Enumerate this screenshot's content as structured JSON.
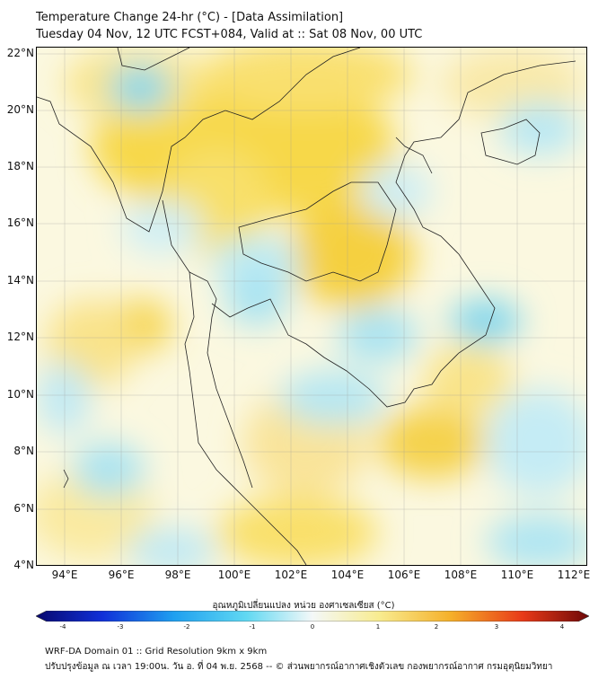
{
  "title_line1": "Temperature Change 24-hr (°C) - [Data Assimilation]",
  "title_line2": "Tuesday 04 Nov, 12 UTC FCST+084, Valid at :: Sat 08 Nov, 00 UTC",
  "lat_labels": [
    "22°N",
    "20°N",
    "18°N",
    "16°N",
    "14°N",
    "12°N",
    "10°N",
    "8°N",
    "6°N",
    "4°N"
  ],
  "lon_labels": [
    "94°E",
    "96°E",
    "98°E",
    "100°E",
    "102°E",
    "104°E",
    "106°E",
    "108°E",
    "110°E",
    "112°E"
  ],
  "colorbar": {
    "title": "อุณหภูมิเปลี่ยนแปลง หน่วย องศาเซลเซียส (°C)",
    "ticks": [
      "-4",
      "-3",
      "-2",
      "-1",
      "0",
      "1",
      "2",
      "3",
      "4"
    ],
    "range": [
      -4,
      4
    ]
  },
  "footer_line1": "WRF-DA Domain 01 :: Grid Resolution 9km x 9km",
  "footer_line2": "ปรับปรุงข้อมูล ณ เวลา 19:00น. วัน อ. ที่ 04 พ.ย. 2568 -- © ส่วนพยากรณ์อากาศเชิงตัวเลข กองพยากรณ์อากาศ กรมอุตุนิยมวิทยา",
  "map_extent": {
    "lon": [
      93,
      112.5
    ],
    "lat": [
      4,
      22.2
    ]
  }
}
